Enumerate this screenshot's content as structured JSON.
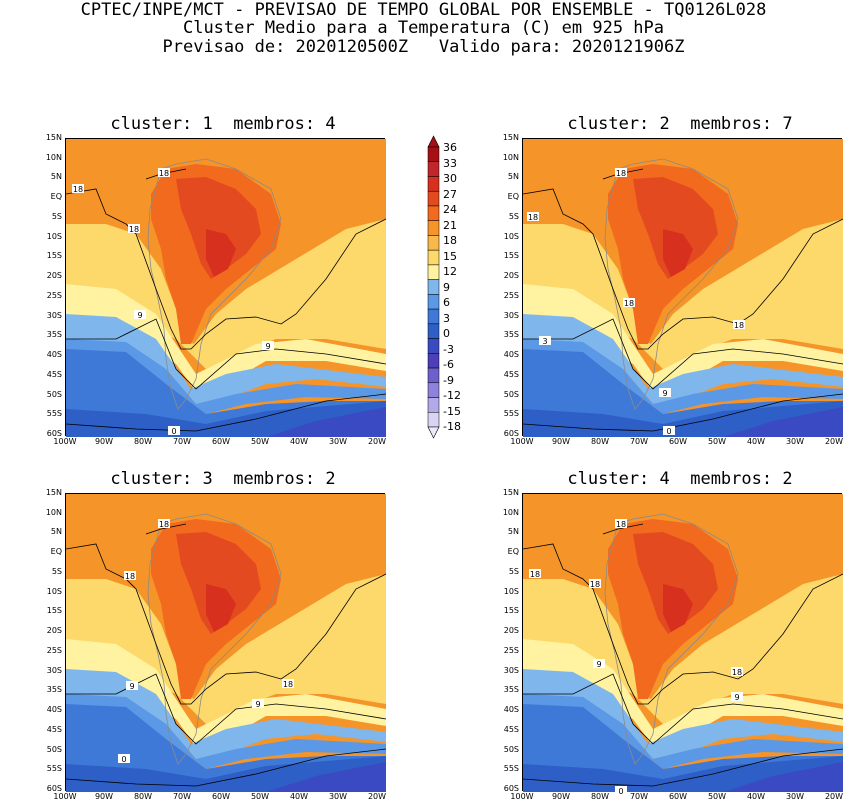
{
  "header": {
    "line1": "CPTEC/INPE/MCT - PREVISAO DE TEMPO GLOBAL POR ENSEMBLE - TQ0126L028",
    "line2": "Cluster Medio para a Temperatura (C) em 925 hPa",
    "line3": "Previsao de: 2020120500Z   Valido para: 2020121906Z"
  },
  "axes": {
    "lat_labels": [
      "15N",
      "10N",
      "5N",
      "EQ",
      "5S",
      "10S",
      "15S",
      "20S",
      "25S",
      "30S",
      "35S",
      "40S",
      "45S",
      "50S",
      "55S",
      "60S"
    ],
    "lon_labels": [
      "100W",
      "90W",
      "80W",
      "70W",
      "60W",
      "50W",
      "40W",
      "30W",
      "20W"
    ]
  },
  "colorbar": {
    "labels": [
      "36",
      "33",
      "30",
      "27",
      "24",
      "21",
      "18",
      "15",
      "12",
      "9",
      "6",
      "3",
      "0",
      "-3",
      "-6",
      "-9",
      "-12",
      "-15",
      "-18"
    ],
    "colors": [
      "#a50f15",
      "#c0262b",
      "#d7301f",
      "#e34a1f",
      "#f26a1e",
      "#f59428",
      "#f9b84a",
      "#fdd86a",
      "#fff2a0",
      "#7fb6ec",
      "#5b98e6",
      "#3e79d8",
      "#2d5fc7",
      "#3a4ac2",
      "#4c3fb8",
      "#6d5fcc",
      "#8e82dc",
      "#b2aae8",
      "#d8d4f4"
    ]
  },
  "panels": [
    {
      "title": "cluster: 1  membros: 4",
      "labels": [
        "18",
        "18",
        "18",
        "9",
        "9",
        "0"
      ]
    },
    {
      "title": "cluster: 2  membros: 7",
      "labels": [
        "18",
        "18",
        "18",
        "18",
        "3",
        "9",
        "0"
      ]
    },
    {
      "title": "cluster: 3  membros: 2",
      "labels": [
        "18",
        "18",
        "18",
        "9",
        "9",
        "0"
      ]
    },
    {
      "title": "cluster: 4  membros: 2",
      "labels": [
        "18",
        "18",
        "18",
        "18",
        "9",
        "9",
        "0"
      ]
    }
  ]
}
